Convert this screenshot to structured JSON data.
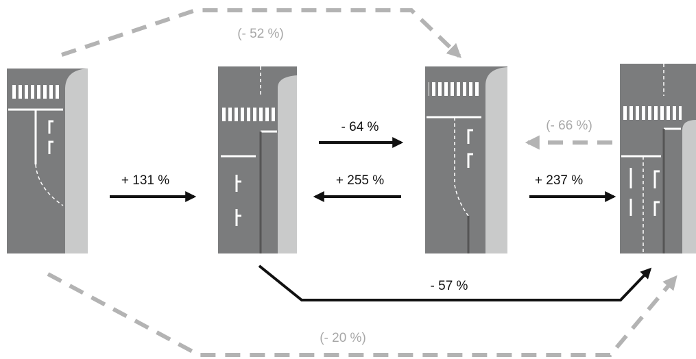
{
  "edges": [
    {
      "label": "+ 131 %"
    },
    {
      "label": "- 64 %"
    },
    {
      "label": "+ 255 %"
    },
    {
      "label": "(- 66 %)"
    },
    {
      "label": "+ 237 %"
    },
    {
      "label": "- 57 %"
    },
    {
      "label": "(- 52 %)"
    },
    {
      "label": "(- 20 %)"
    }
  ]
}
